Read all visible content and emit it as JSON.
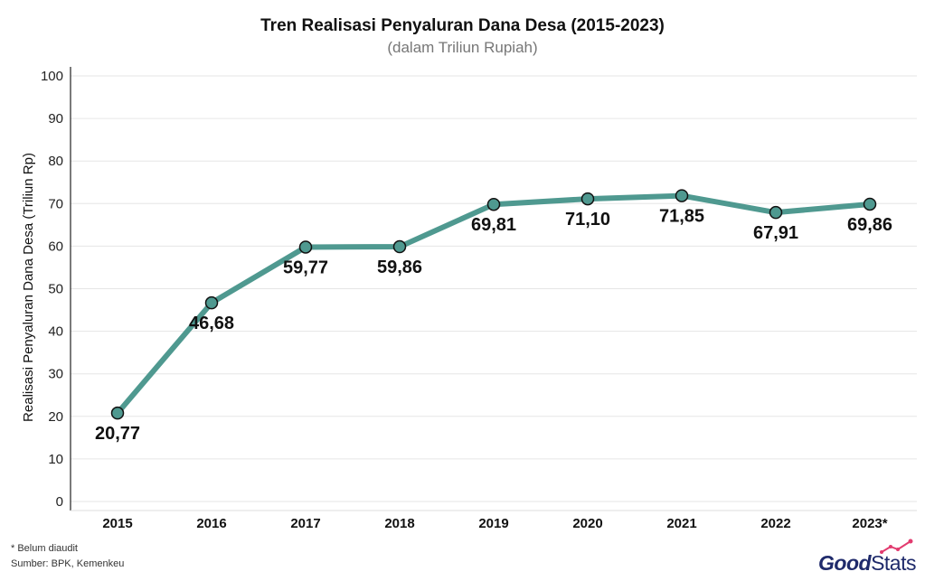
{
  "chart_data": {
    "type": "line",
    "title": "Tren Realisasi Penyaluran Dana Desa (2015-2023)",
    "subtitle": "(dalam Triliun Rupiah)",
    "xlabel": "",
    "ylabel": "Realisasi Penyaluran Dana Desa (Triliun Rp)",
    "categories": [
      "2015",
      "2016",
      "2017",
      "2018",
      "2019",
      "2020",
      "2021",
      "2022",
      "2023*"
    ],
    "values": [
      20.77,
      46.68,
      59.77,
      59.86,
      69.81,
      71.1,
      71.85,
      67.91,
      69.86
    ],
    "data_labels": [
      "20,77",
      "46,68",
      "59,77",
      "59,86",
      "69,81",
      "71,10",
      "71,85",
      "67,91",
      "69,86"
    ],
    "ylim": [
      0,
      100
    ],
    "yticks": [
      0,
      10,
      20,
      30,
      40,
      50,
      60,
      70,
      80,
      90,
      100
    ],
    "grid": true,
    "line_color": "#4f9990",
    "marker_color": "#4f9990"
  },
  "footnotes": {
    "note": "* Belum diaudit",
    "source": "Sumber: BPK, Kemenkeu"
  },
  "brand": {
    "good": "Good",
    "stats": "Stats"
  }
}
